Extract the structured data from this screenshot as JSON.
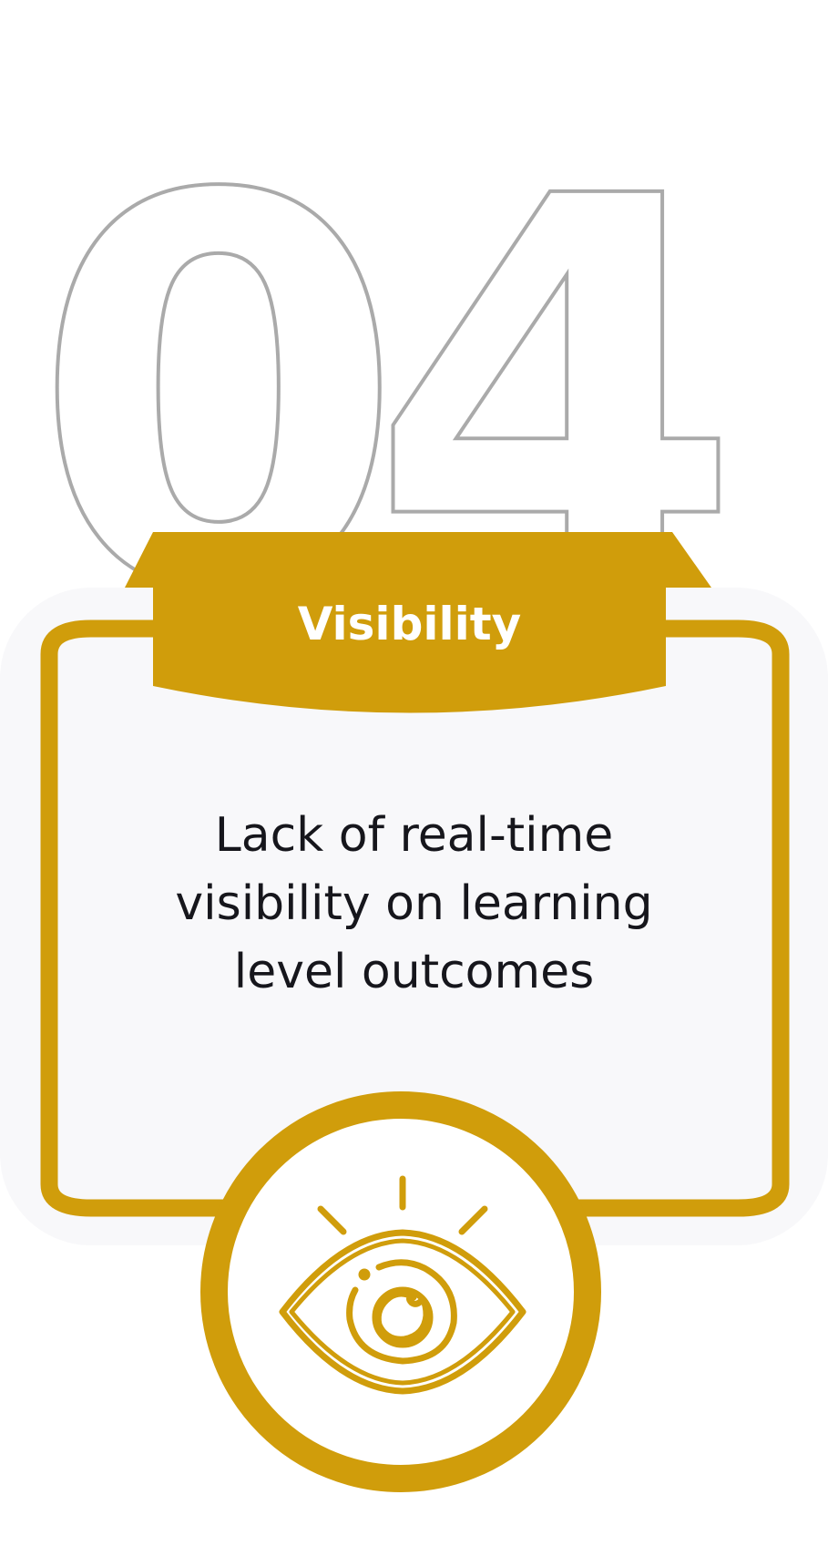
{
  "step_number": "04",
  "title": "Visibility",
  "description": "Lack of real-time visibility on learning level outcomes",
  "icon": "eye-icon",
  "colors": {
    "accent": "#D09D0B",
    "outline_number": "#AAAAAA",
    "card_background": "#F8F8FA",
    "text": "#16161C",
    "title_text": "#FFFFFF"
  }
}
